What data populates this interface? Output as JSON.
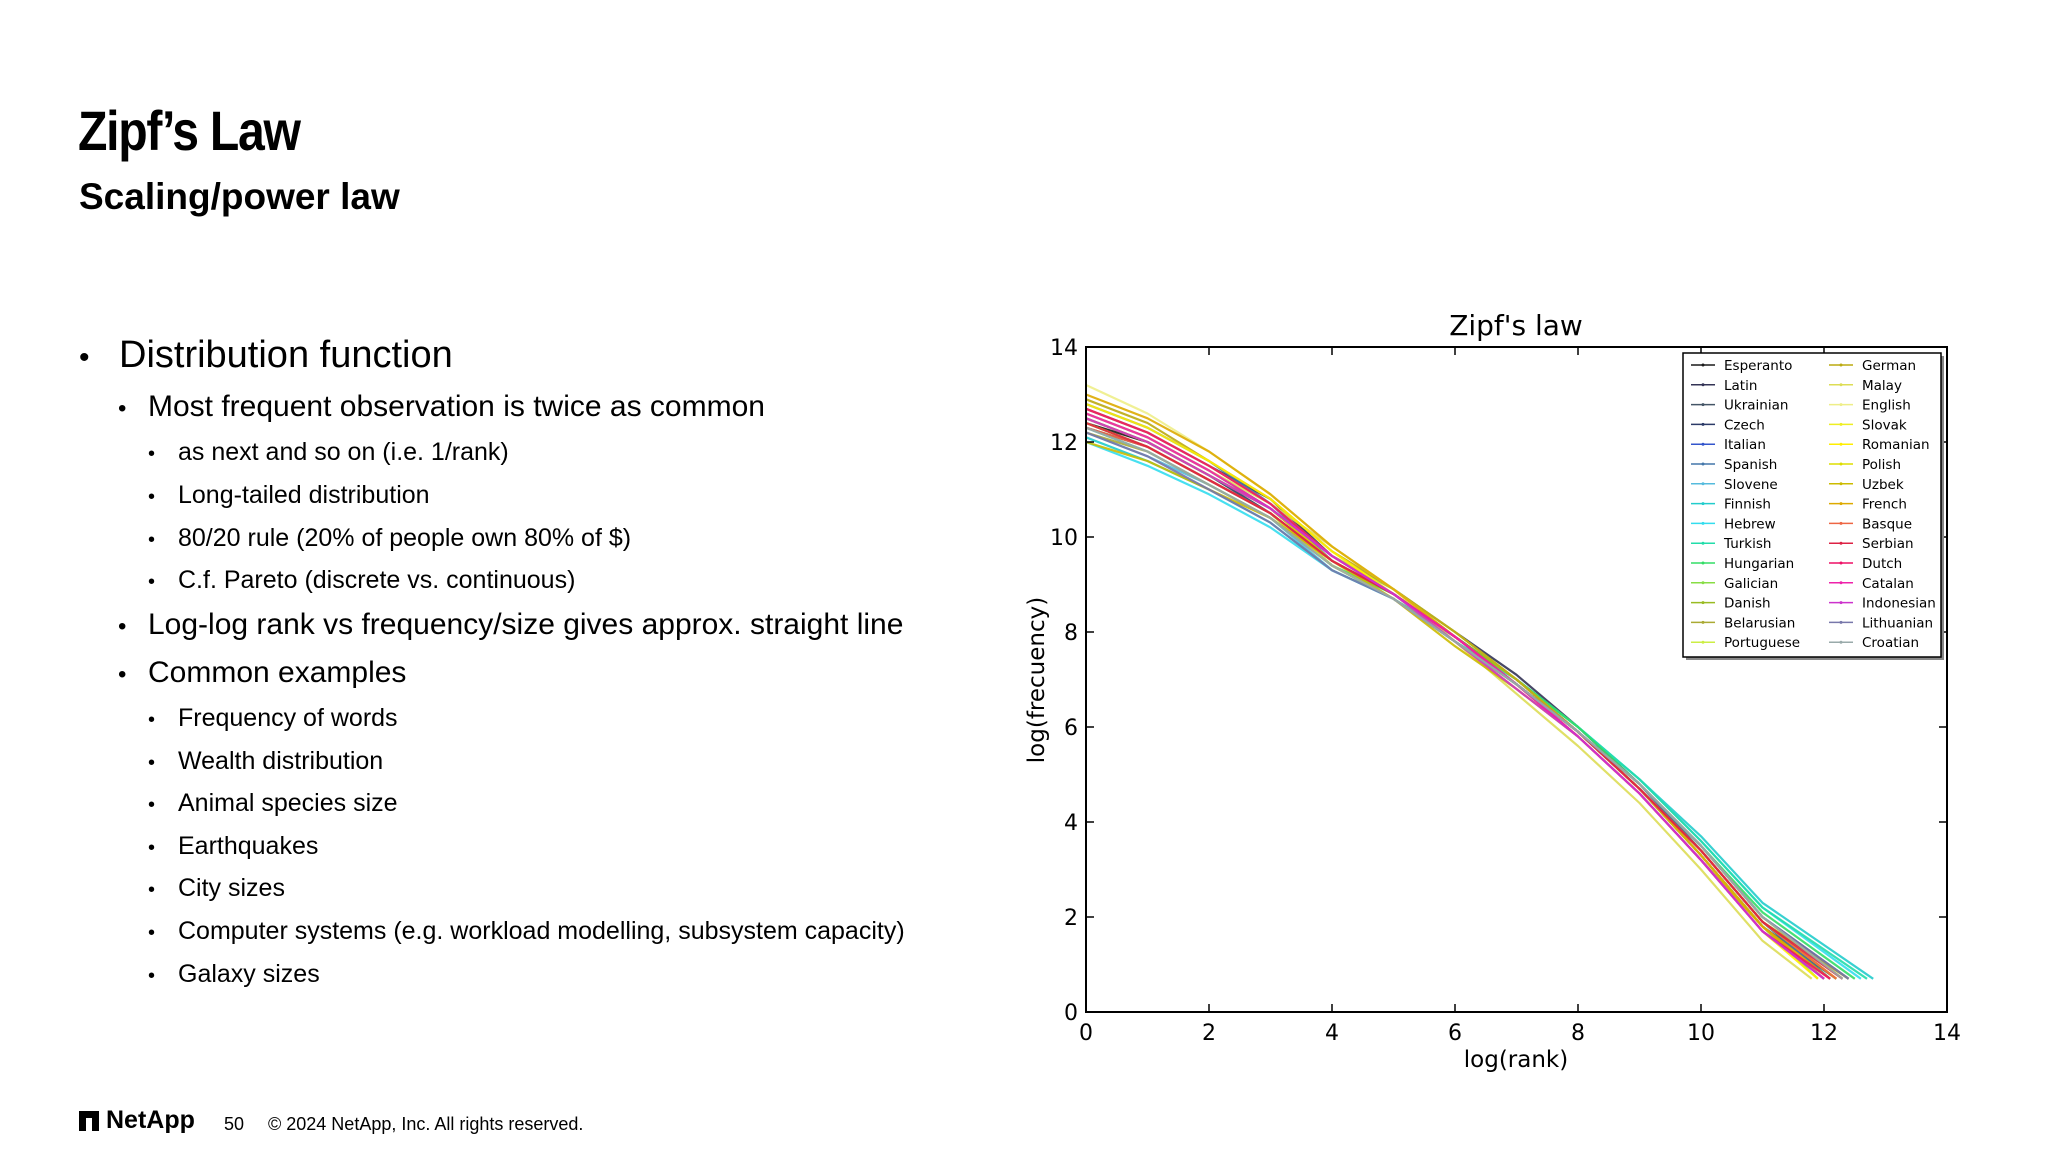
{
  "slide": {
    "title": "Zipf’s Law",
    "subtitle": "Scaling/power law"
  },
  "bullets": [
    {
      "level": 1,
      "text": "Distribution function"
    },
    {
      "level": 2,
      "text": "Most frequent observation is twice as common"
    },
    {
      "level": 3,
      "text": "as next and so on (i.e. 1/rank)"
    },
    {
      "level": 3,
      "text": "Long-tailed distribution"
    },
    {
      "level": 3,
      "text": "80/20 rule (20% of people own 80% of $)"
    },
    {
      "level": 3,
      "text": "C.f. Pareto (discrete vs. continuous)"
    },
    {
      "level": 2,
      "text": "Log-log rank vs frequency/size gives approx. straight line"
    },
    {
      "level": 2,
      "text": "Common examples"
    },
    {
      "level": 3,
      "text": "Frequency of words"
    },
    {
      "level": 3,
      "text": "Wealth distribution"
    },
    {
      "level": 3,
      "text": "Animal species size"
    },
    {
      "level": 3,
      "text": "Earthquakes"
    },
    {
      "level": 3,
      "text": "City sizes"
    },
    {
      "level": 3,
      "text": "Computer systems (e.g. workload modelling, subsystem capacity)"
    },
    {
      "level": 3,
      "text": "Galaxy sizes"
    }
  ],
  "bullet_symbol": "•",
  "chart_data": {
    "type": "line",
    "title": "Zipf's law",
    "xlabel": "log(rank)",
    "ylabel": "log(frecuency)",
    "xlim": [
      0,
      14
    ],
    "ylim": [
      0,
      14
    ],
    "xticks": [
      0,
      2,
      4,
      6,
      8,
      10,
      12,
      14
    ],
    "yticks": [
      0,
      2,
      4,
      6,
      8,
      10,
      12,
      14
    ],
    "legend_position": "top-right",
    "series": [
      {
        "name": "Esperanto",
        "color": "#1a1a1a",
        "x": [
          0,
          1,
          2,
          3,
          4,
          5,
          6,
          7,
          8,
          9,
          10,
          11,
          12.0
        ],
        "y": [
          12.4,
          12.0,
          11.3,
          10.6,
          9.5,
          8.8,
          7.9,
          7.0,
          5.9,
          4.7,
          3.3,
          1.8,
          0.7
        ]
      },
      {
        "name": "Latin",
        "color": "#333355",
        "x": [
          0,
          1,
          2,
          3,
          4,
          5,
          6,
          7,
          8,
          9,
          10,
          11,
          12.1
        ],
        "y": [
          12.7,
          12.2,
          11.5,
          10.8,
          9.6,
          8.9,
          8.0,
          7.1,
          6.0,
          4.8,
          3.4,
          1.9,
          0.7
        ]
      },
      {
        "name": "Ukrainian",
        "color": "#445566",
        "x": [
          0,
          1,
          2,
          3,
          4,
          5,
          6,
          7,
          8,
          9,
          10,
          11,
          12.2
        ],
        "y": [
          12.3,
          11.9,
          11.2,
          10.5,
          9.4,
          8.7,
          7.8,
          6.9,
          5.9,
          4.7,
          3.3,
          1.8,
          0.7
        ]
      },
      {
        "name": "Czech",
        "color": "#2b3a67",
        "x": [
          0,
          1,
          2,
          3,
          4,
          5,
          6,
          7,
          8,
          9,
          10,
          11,
          12.4
        ],
        "y": [
          12.5,
          12.0,
          11.3,
          10.5,
          9.4,
          8.7,
          7.8,
          6.9,
          5.9,
          4.8,
          3.5,
          2.0,
          0.7
        ]
      },
      {
        "name": "Italian",
        "color": "#3355cc",
        "x": [
          0,
          1,
          2,
          3,
          4,
          5,
          6,
          7,
          8,
          9,
          10,
          11,
          12.0
        ],
        "y": [
          12.6,
          12.1,
          11.4,
          10.6,
          9.5,
          8.8,
          7.9,
          7.0,
          5.9,
          4.7,
          3.3,
          1.8,
          0.7
        ]
      },
      {
        "name": "Spanish",
        "color": "#4477aa",
        "x": [
          0,
          1,
          2,
          3,
          4,
          5,
          6,
          7,
          8,
          9,
          10,
          11,
          12.1
        ],
        "y": [
          12.8,
          12.3,
          11.6,
          10.7,
          9.5,
          8.8,
          7.9,
          7.0,
          6.0,
          4.8,
          3.4,
          1.9,
          0.7
        ]
      },
      {
        "name": "Slovene",
        "color": "#55bbdd",
        "x": [
          0,
          1,
          2,
          3,
          4,
          5,
          6,
          7,
          8,
          9,
          10,
          11,
          12.3
        ],
        "y": [
          12.2,
          11.7,
          11.1,
          10.4,
          9.3,
          8.7,
          7.8,
          6.9,
          5.9,
          4.8,
          3.5,
          2.0,
          0.7
        ]
      },
      {
        "name": "Finnish",
        "color": "#22cccc",
        "x": [
          0,
          1,
          2,
          3,
          4,
          5,
          6,
          7,
          8,
          9,
          10,
          11,
          12.8
        ],
        "y": [
          12.1,
          11.6,
          11.0,
          10.3,
          9.3,
          8.7,
          7.8,
          7.0,
          6.0,
          4.9,
          3.7,
          2.3,
          0.7
        ]
      },
      {
        "name": "Hebrew",
        "color": "#33ddee",
        "x": [
          0,
          1,
          2,
          3,
          4,
          5,
          6,
          7,
          8,
          9,
          10,
          11,
          12.6
        ],
        "y": [
          12.0,
          11.5,
          10.9,
          10.2,
          9.3,
          8.7,
          7.8,
          7.0,
          6.0,
          4.9,
          3.6,
          2.2,
          0.7
        ]
      },
      {
        "name": "Turkish",
        "color": "#22ddaa",
        "x": [
          0,
          1,
          2,
          3,
          4,
          5,
          6,
          7,
          8,
          9,
          10,
          11,
          12.7
        ],
        "y": [
          12.3,
          11.8,
          11.1,
          10.4,
          9.4,
          8.7,
          7.9,
          7.0,
          6.0,
          4.9,
          3.6,
          2.2,
          0.7
        ]
      },
      {
        "name": "Hungarian",
        "color": "#33dd66",
        "x": [
          0,
          1,
          2,
          3,
          4,
          5,
          6,
          7,
          8,
          9,
          10,
          11,
          12.5
        ],
        "y": [
          12.4,
          11.9,
          11.2,
          10.5,
          9.4,
          8.8,
          7.9,
          7.0,
          6.0,
          4.8,
          3.5,
          2.1,
          0.7
        ]
      },
      {
        "name": "Galician",
        "color": "#88dd44",
        "x": [
          0,
          1,
          2,
          3,
          4,
          5,
          6,
          7,
          8,
          9,
          10,
          11,
          11.9
        ],
        "y": [
          12.6,
          12.1,
          11.4,
          10.6,
          9.6,
          8.8,
          7.9,
          6.9,
          5.9,
          4.7,
          3.3,
          1.8,
          0.7
        ]
      },
      {
        "name": "Danish",
        "color": "#99bb22",
        "x": [
          0,
          1,
          2,
          3,
          4,
          5,
          6,
          7,
          8,
          9,
          10,
          11,
          12.2
        ],
        "y": [
          12.5,
          12.0,
          11.3,
          10.6,
          9.5,
          8.8,
          7.9,
          7.0,
          5.9,
          4.7,
          3.4,
          1.9,
          0.7
        ]
      },
      {
        "name": "Belarusian",
        "color": "#aaaa33",
        "x": [
          0,
          1,
          2,
          3,
          4,
          5,
          6,
          7,
          8,
          9,
          10,
          11,
          12.3
        ],
        "y": [
          12.2,
          11.8,
          11.1,
          10.4,
          9.4,
          8.7,
          7.8,
          6.9,
          5.9,
          4.8,
          3.5,
          2.0,
          0.7
        ]
      },
      {
        "name": "Portuguese",
        "color": "#ccee44",
        "x": [
          0,
          1,
          2,
          3,
          4,
          5,
          6,
          7,
          8,
          9,
          10,
          11,
          12.0
        ],
        "y": [
          12.7,
          12.2,
          11.5,
          10.7,
          9.6,
          8.9,
          8.0,
          7.0,
          5.9,
          4.7,
          3.3,
          1.8,
          0.7
        ]
      },
      {
        "name": "German",
        "color": "#bbaa11",
        "x": [
          0,
          1,
          2,
          3,
          4,
          5,
          6,
          7,
          8,
          9,
          10,
          11,
          12.4
        ],
        "y": [
          12.9,
          12.4,
          11.6,
          10.8,
          9.7,
          8.9,
          8.0,
          7.0,
          5.9,
          4.7,
          3.4,
          1.9,
          0.7
        ]
      },
      {
        "name": "Malay",
        "color": "#dddd55",
        "x": [
          0,
          1,
          2,
          3,
          4,
          5,
          6,
          7,
          8,
          9,
          10,
          11,
          11.8
        ],
        "y": [
          12.6,
          12.1,
          11.4,
          10.7,
          9.8,
          8.9,
          7.8,
          6.7,
          5.6,
          4.4,
          3.0,
          1.5,
          0.7
        ]
      },
      {
        "name": "English",
        "color": "#eeee88",
        "x": [
          0,
          1,
          2,
          3,
          4,
          5,
          6,
          7,
          8,
          9,
          10,
          11,
          12.1
        ],
        "y": [
          13.2,
          12.6,
          11.8,
          10.9,
          9.8,
          8.9,
          7.9,
          6.9,
          5.8,
          4.6,
          3.2,
          1.7,
          0.7
        ]
      },
      {
        "name": "Slovak",
        "color": "#eeee22",
        "x": [
          0,
          1,
          2,
          3,
          4,
          5,
          6,
          7,
          8,
          9,
          10,
          11,
          12.3
        ],
        "y": [
          12.4,
          11.9,
          11.2,
          10.5,
          9.4,
          8.7,
          7.8,
          6.9,
          5.9,
          4.8,
          3.5,
          2.0,
          0.7
        ]
      },
      {
        "name": "Romanian",
        "color": "#ffee00",
        "x": [
          0,
          1,
          2,
          3,
          4,
          5,
          6,
          7,
          8,
          9,
          10,
          11,
          11.9
        ],
        "y": [
          12.8,
          12.3,
          11.6,
          10.8,
          9.7,
          8.8,
          7.8,
          6.8,
          5.8,
          4.6,
          3.2,
          1.7,
          0.7
        ]
      },
      {
        "name": "Polish",
        "color": "#dddd00",
        "x": [
          0,
          1,
          2,
          3,
          4,
          5,
          6,
          7,
          8,
          9,
          10,
          11,
          12.2
        ],
        "y": [
          12.5,
          12.0,
          11.3,
          10.6,
          9.5,
          8.8,
          7.9,
          6.9,
          5.9,
          4.7,
          3.4,
          1.9,
          0.7
        ]
      },
      {
        "name": "Uzbek",
        "color": "#ccbb00",
        "x": [
          0,
          1,
          2,
          3,
          4,
          5,
          6,
          7,
          8,
          9,
          10,
          11,
          12.0
        ],
        "y": [
          12.0,
          11.6,
          11.0,
          10.4,
          9.5,
          8.7,
          7.7,
          6.8,
          5.8,
          4.6,
          3.2,
          1.8,
          0.7
        ]
      },
      {
        "name": "French",
        "color": "#ddaa00",
        "x": [
          0,
          1,
          2,
          3,
          4,
          5,
          6,
          7,
          8,
          9,
          10,
          11,
          12.1
        ],
        "y": [
          13.0,
          12.5,
          11.8,
          10.9,
          9.8,
          8.9,
          7.9,
          6.9,
          5.9,
          4.7,
          3.3,
          1.8,
          0.7
        ]
      },
      {
        "name": "Basque",
        "color": "#ee6644",
        "x": [
          0,
          1,
          2,
          3,
          4,
          5,
          6,
          7,
          8,
          9,
          10,
          11,
          12.2
        ],
        "y": [
          12.3,
          11.9,
          11.2,
          10.5,
          9.5,
          8.8,
          7.9,
          6.9,
          5.9,
          4.7,
          3.4,
          1.9,
          0.7
        ]
      },
      {
        "name": "Serbian",
        "color": "#dd2244",
        "x": [
          0,
          1,
          2,
          3,
          4,
          5,
          6,
          7,
          8,
          9,
          10,
          11,
          12.3
        ],
        "y": [
          12.4,
          11.9,
          11.2,
          10.5,
          9.5,
          8.8,
          7.9,
          6.9,
          5.9,
          4.7,
          3.4,
          1.9,
          0.7
        ]
      },
      {
        "name": "Dutch",
        "color": "#ee1166",
        "x": [
          0,
          1,
          2,
          3,
          4,
          5,
          6,
          7,
          8,
          9,
          10,
          11,
          12.1
        ],
        "y": [
          12.7,
          12.2,
          11.5,
          10.7,
          9.6,
          8.8,
          7.9,
          6.9,
          5.8,
          4.6,
          3.2,
          1.7,
          0.7
        ]
      },
      {
        "name": "Catalan",
        "color": "#ee22aa",
        "x": [
          0,
          1,
          2,
          3,
          4,
          5,
          6,
          7,
          8,
          9,
          10,
          11,
          12.0
        ],
        "y": [
          12.6,
          12.1,
          11.4,
          10.6,
          9.6,
          8.8,
          7.9,
          6.9,
          5.8,
          4.6,
          3.2,
          1.7,
          0.7
        ]
      },
      {
        "name": "Indonesian",
        "color": "#cc33cc",
        "x": [
          0,
          1,
          2,
          3,
          4,
          5,
          6,
          7,
          8,
          9,
          10,
          11,
          12.0
        ],
        "y": [
          12.5,
          12.0,
          11.3,
          10.6,
          9.6,
          8.8,
          7.8,
          6.8,
          5.8,
          4.6,
          3.2,
          1.7,
          0.7
        ]
      },
      {
        "name": "Lithuanian",
        "color": "#7777aa",
        "x": [
          0,
          1,
          2,
          3,
          4,
          5,
          6,
          7,
          8,
          9,
          10,
          11,
          12.4
        ],
        "y": [
          12.2,
          11.7,
          11.0,
          10.3,
          9.3,
          8.7,
          7.8,
          6.9,
          5.9,
          4.8,
          3.5,
          2.0,
          0.7
        ]
      },
      {
        "name": "Croatian",
        "color": "#99aaaa",
        "x": [
          0,
          1,
          2,
          3,
          4,
          5,
          6,
          7,
          8,
          9,
          10,
          11,
          12.3
        ],
        "y": [
          12.3,
          11.8,
          11.1,
          10.4,
          9.4,
          8.7,
          7.8,
          6.9,
          5.9,
          4.8,
          3.5,
          2.0,
          0.7
        ]
      }
    ]
  },
  "footer": {
    "logo_text": "NetApp",
    "page_number": "50",
    "copyright": "© 2024 NetApp, Inc. All rights reserved."
  }
}
